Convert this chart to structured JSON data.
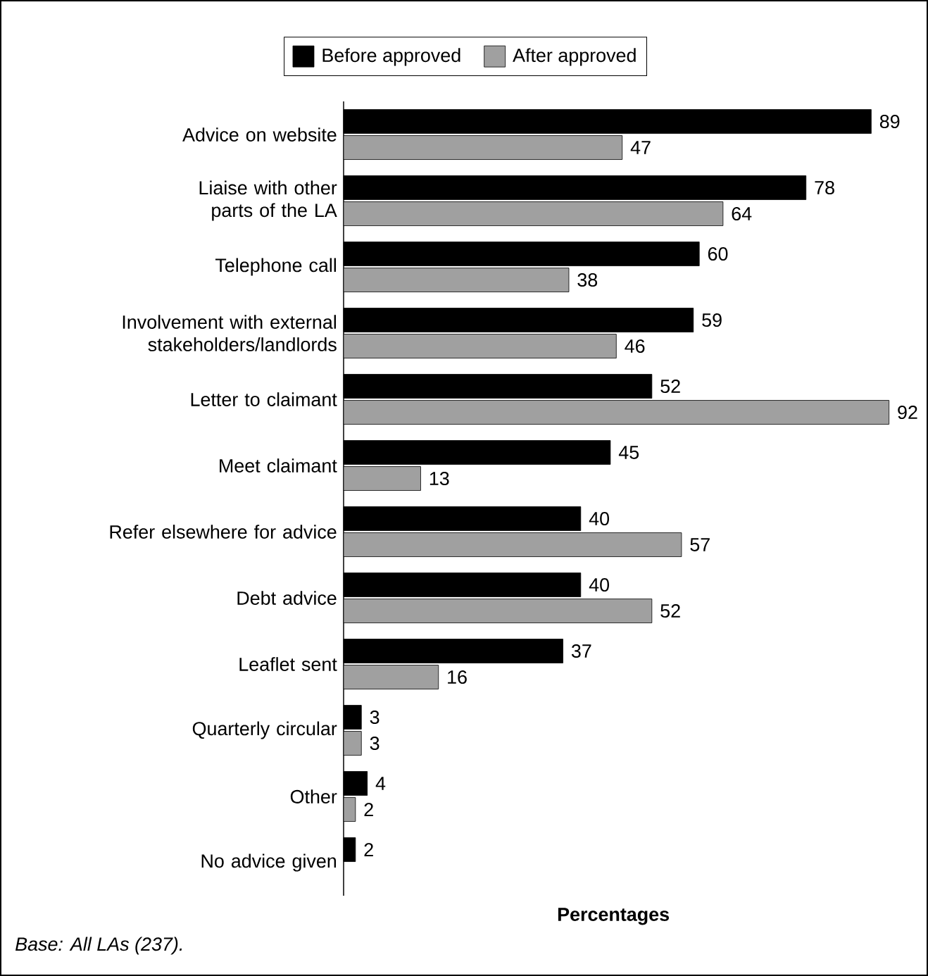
{
  "chart_data": {
    "type": "bar",
    "orientation": "horizontal",
    "categories": [
      "Advice on website",
      "Liaise with other parts of the LA",
      "Telephone call",
      "Involvement with external stakeholders/landlords",
      "Letter to claimant",
      "Meet claimant",
      "Refer elsewhere for advice",
      "Debt advice",
      "Leaflet sent",
      "Quarterly circular",
      "Other",
      "No advice given"
    ],
    "series": [
      {
        "name": "Before approved",
        "color": "#000000",
        "values": [
          89,
          78,
          60,
          59,
          52,
          45,
          40,
          40,
          37,
          3,
          4,
          2
        ]
      },
      {
        "name": "After approved",
        "color": "#a0a0a0",
        "values": [
          47,
          64,
          38,
          46,
          92,
          13,
          57,
          52,
          16,
          3,
          2,
          null
        ]
      }
    ],
    "data_labels": true,
    "legend": "top",
    "xlabel": "Percentages",
    "annotations": [
      "Base: All LAs (237)."
    ]
  }
}
